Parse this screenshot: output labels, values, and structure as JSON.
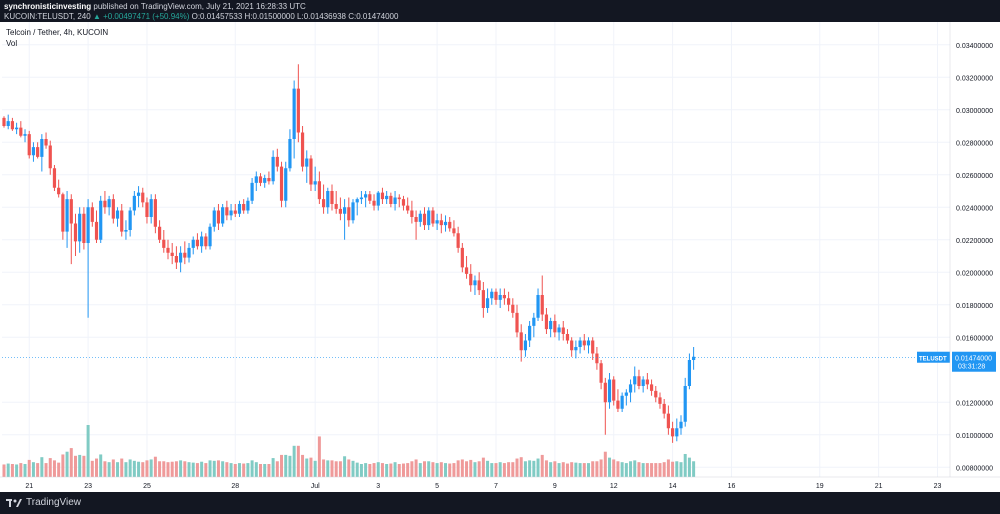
{
  "header": {
    "publisher": "synchronisticinvesting",
    "published_line": " published on TradingView.com, July 21, 2021 16:28:33 UTC",
    "symbol": "KUCOIN:TELUSDT, 240",
    "change": "▲ +0.00497471 (+50.94%)",
    "ohlc": "O:0.01457533 H:0.01500000 L:0.01436938 C:0.01474000"
  },
  "legend": {
    "title": "Telcoin / Tether, 4h, KUCOIN",
    "vol": "Vol"
  },
  "price_label": {
    "symbol": "TELUSDT",
    "price": "0.01474000",
    "countdown": "03:31:28"
  },
  "footer": {
    "logo_text": "TradingView"
  },
  "colors": {
    "up": "#2196f3",
    "down": "#ef5350",
    "vol_up": "#80cbc4",
    "vol_down": "#ef9a9a",
    "price_line": "#2196f3",
    "grid": "#f0f3fa"
  },
  "chart_data": {
    "type": "candlestick",
    "title": "Telcoin / Tether, 4h, KUCOIN",
    "y_axis": {
      "min": 0.0074,
      "max": 0.0354,
      "ticks": [
        "0.03400000",
        "0.03200000",
        "0.03000000",
        "0.02800000",
        "0.02600000",
        "0.02400000",
        "0.02200000",
        "0.02000000",
        "0.01800000",
        "0.01600000",
        "0.01200000",
        "0.01000000",
        "0.00800000"
      ],
      "tick_values": [
        0.034,
        0.032,
        0.03,
        0.028,
        0.026,
        0.024,
        0.022,
        0.02,
        0.018,
        0.016,
        0.012,
        0.01,
        0.008
      ]
    },
    "x_axis": {
      "labels": [
        "21",
        "23",
        "25",
        "28",
        "Jul",
        "3",
        "5",
        "7",
        "9",
        "12",
        "14",
        "16",
        "19",
        "21",
        "23"
      ],
      "label_candles": [
        6,
        20,
        34,
        55,
        74,
        89,
        103,
        117,
        131,
        145,
        159,
        173,
        194,
        208,
        222
      ]
    },
    "current_price": 0.01474,
    "candles": [
      [
        0.0295,
        0.0296,
        0.0289,
        0.029
      ],
      [
        0.029,
        0.0297,
        0.0288,
        0.0293
      ],
      [
        0.0293,
        0.0295,
        0.0287,
        0.0288
      ],
      [
        0.0288,
        0.0292,
        0.0285,
        0.0289
      ],
      [
        0.0289,
        0.0293,
        0.0283,
        0.0284
      ],
      [
        0.0284,
        0.0288,
        0.028,
        0.0285
      ],
      [
        0.0285,
        0.0287,
        0.027,
        0.0272
      ],
      [
        0.0272,
        0.028,
        0.0268,
        0.0277
      ],
      [
        0.0277,
        0.028,
        0.027,
        0.0271
      ],
      [
        0.0271,
        0.0285,
        0.0262,
        0.0282
      ],
      [
        0.0282,
        0.0286,
        0.0276,
        0.0278
      ],
      [
        0.0278,
        0.0281,
        0.026,
        0.0264
      ],
      [
        0.0264,
        0.0266,
        0.025,
        0.0252
      ],
      [
        0.0252,
        0.0257,
        0.0246,
        0.0248
      ],
      [
        0.0248,
        0.0249,
        0.022,
        0.0225
      ],
      [
        0.0225,
        0.025,
        0.0215,
        0.0245
      ],
      [
        0.0245,
        0.0248,
        0.0205,
        0.023
      ],
      [
        0.023,
        0.0236,
        0.021,
        0.0219
      ],
      [
        0.0219,
        0.024,
        0.0212,
        0.0236
      ],
      [
        0.0236,
        0.024,
        0.0214,
        0.0218
      ],
      [
        0.0218,
        0.0245,
        0.0172,
        0.024
      ],
      [
        0.024,
        0.0243,
        0.0228,
        0.0231
      ],
      [
        0.0231,
        0.0238,
        0.0218,
        0.022
      ],
      [
        0.022,
        0.0247,
        0.0218,
        0.0244
      ],
      [
        0.0244,
        0.025,
        0.0236,
        0.024
      ],
      [
        0.024,
        0.0247,
        0.0235,
        0.0245
      ],
      [
        0.0245,
        0.0248,
        0.023,
        0.0233
      ],
      [
        0.0233,
        0.024,
        0.0228,
        0.0238
      ],
      [
        0.0238,
        0.0242,
        0.0222,
        0.0225
      ],
      [
        0.0225,
        0.0232,
        0.022,
        0.0226
      ],
      [
        0.0226,
        0.024,
        0.0222,
        0.0238
      ],
      [
        0.0238,
        0.025,
        0.0235,
        0.0247
      ],
      [
        0.0247,
        0.0253,
        0.024,
        0.0249
      ],
      [
        0.0249,
        0.0252,
        0.024,
        0.0243
      ],
      [
        0.0243,
        0.0246,
        0.023,
        0.0234
      ],
      [
        0.0234,
        0.0248,
        0.023,
        0.0245
      ],
      [
        0.0245,
        0.0248,
        0.0224,
        0.0228
      ],
      [
        0.0228,
        0.0232,
        0.0218,
        0.022
      ],
      [
        0.022,
        0.0226,
        0.0212,
        0.0215
      ],
      [
        0.0215,
        0.022,
        0.0208,
        0.0212
      ],
      [
        0.0212,
        0.0218,
        0.0205,
        0.021
      ],
      [
        0.021,
        0.0216,
        0.0202,
        0.0206
      ],
      [
        0.0206,
        0.0216,
        0.02,
        0.0212
      ],
      [
        0.0212,
        0.0219,
        0.0205,
        0.0209
      ],
      [
        0.0209,
        0.0218,
        0.0206,
        0.0215
      ],
      [
        0.0215,
        0.0222,
        0.0211,
        0.022
      ],
      [
        0.022,
        0.0224,
        0.0214,
        0.0216
      ],
      [
        0.0216,
        0.0225,
        0.0212,
        0.0222
      ],
      [
        0.0222,
        0.0224,
        0.0214,
        0.0216
      ],
      [
        0.0216,
        0.023,
        0.0214,
        0.0228
      ],
      [
        0.0228,
        0.024,
        0.0225,
        0.0238
      ],
      [
        0.0238,
        0.0242,
        0.0226,
        0.023
      ],
      [
        0.023,
        0.0242,
        0.0228,
        0.024
      ],
      [
        0.024,
        0.0244,
        0.0232,
        0.0235
      ],
      [
        0.0235,
        0.0242,
        0.0232,
        0.0238
      ],
      [
        0.0238,
        0.0242,
        0.0234,
        0.0236
      ],
      [
        0.0236,
        0.0244,
        0.0234,
        0.0242
      ],
      [
        0.0242,
        0.0245,
        0.0236,
        0.0238
      ],
      [
        0.0238,
        0.0246,
        0.0236,
        0.0244
      ],
      [
        0.0244,
        0.0258,
        0.0242,
        0.0255
      ],
      [
        0.0255,
        0.0262,
        0.025,
        0.0259
      ],
      [
        0.0259,
        0.0261,
        0.0253,
        0.0255
      ],
      [
        0.0255,
        0.026,
        0.0252,
        0.0258
      ],
      [
        0.0258,
        0.0262,
        0.0254,
        0.0256
      ],
      [
        0.0256,
        0.0275,
        0.0254,
        0.0271
      ],
      [
        0.0271,
        0.0276,
        0.0262,
        0.0265
      ],
      [
        0.0265,
        0.0268,
        0.024,
        0.0244
      ],
      [
        0.0244,
        0.0268,
        0.024,
        0.0264
      ],
      [
        0.0264,
        0.0288,
        0.0262,
        0.0282
      ],
      [
        0.0282,
        0.0318,
        0.027,
        0.0313
      ],
      [
        0.0313,
        0.0328,
        0.028,
        0.0286
      ],
      [
        0.0286,
        0.029,
        0.0262,
        0.0265
      ],
      [
        0.0265,
        0.0275,
        0.0255,
        0.027
      ],
      [
        0.027,
        0.0272,
        0.025,
        0.0254
      ],
      [
        0.0254,
        0.0265,
        0.025,
        0.0256
      ],
      [
        0.0256,
        0.0262,
        0.0242,
        0.0245
      ],
      [
        0.0245,
        0.0254,
        0.0236,
        0.024
      ],
      [
        0.024,
        0.0252,
        0.0236,
        0.025
      ],
      [
        0.025,
        0.0254,
        0.0238,
        0.0242
      ],
      [
        0.0242,
        0.025,
        0.0236,
        0.0239
      ],
      [
        0.0239,
        0.0246,
        0.0232,
        0.0236
      ],
      [
        0.0236,
        0.0245,
        0.022,
        0.024
      ],
      [
        0.024,
        0.0246,
        0.0228,
        0.0232
      ],
      [
        0.0232,
        0.0245,
        0.023,
        0.0243
      ],
      [
        0.0243,
        0.0246,
        0.0235,
        0.0245
      ],
      [
        0.0245,
        0.025,
        0.0242,
        0.0246
      ],
      [
        0.0246,
        0.025,
        0.024,
        0.0248
      ],
      [
        0.0248,
        0.025,
        0.0242,
        0.0244
      ],
      [
        0.0244,
        0.0248,
        0.0238,
        0.0241
      ],
      [
        0.0241,
        0.025,
        0.0238,
        0.0249
      ],
      [
        0.0249,
        0.0252,
        0.0242,
        0.0245
      ],
      [
        0.0245,
        0.025,
        0.0242,
        0.0247
      ],
      [
        0.0247,
        0.0249,
        0.024,
        0.0242
      ],
      [
        0.0242,
        0.025,
        0.0238,
        0.0246
      ],
      [
        0.0246,
        0.0248,
        0.024,
        0.0245
      ],
      [
        0.0245,
        0.0247,
        0.0238,
        0.0241
      ],
      [
        0.0241,
        0.0246,
        0.0236,
        0.0238
      ],
      [
        0.0238,
        0.0244,
        0.023,
        0.0234
      ],
      [
        0.0234,
        0.0238,
        0.022,
        0.0231
      ],
      [
        0.0231,
        0.0238,
        0.0228,
        0.0236
      ],
      [
        0.0236,
        0.024,
        0.0226,
        0.0229
      ],
      [
        0.0229,
        0.024,
        0.0226,
        0.0238
      ],
      [
        0.0238,
        0.024,
        0.0228,
        0.023
      ],
      [
        0.023,
        0.0236,
        0.0226,
        0.0232
      ],
      [
        0.0232,
        0.0236,
        0.0224,
        0.0229
      ],
      [
        0.0229,
        0.0235,
        0.0225,
        0.0231
      ],
      [
        0.0231,
        0.0234,
        0.0225,
        0.0227
      ],
      [
        0.0227,
        0.0232,
        0.0222,
        0.0224
      ],
      [
        0.0224,
        0.0228,
        0.0212,
        0.0215
      ],
      [
        0.0215,
        0.0218,
        0.02,
        0.0203
      ],
      [
        0.0203,
        0.021,
        0.0196,
        0.0199
      ],
      [
        0.0199,
        0.0205,
        0.0188,
        0.0192
      ],
      [
        0.0192,
        0.0198,
        0.0186,
        0.0195
      ],
      [
        0.0195,
        0.02,
        0.0186,
        0.0189
      ],
      [
        0.0189,
        0.0194,
        0.0172,
        0.0178
      ],
      [
        0.0178,
        0.019,
        0.0175,
        0.0184
      ],
      [
        0.0184,
        0.019,
        0.018,
        0.0188
      ],
      [
        0.0188,
        0.019,
        0.018,
        0.0183
      ],
      [
        0.0183,
        0.019,
        0.0178,
        0.0186
      ],
      [
        0.0186,
        0.019,
        0.018,
        0.0184
      ],
      [
        0.0184,
        0.0188,
        0.0176,
        0.018
      ],
      [
        0.018,
        0.0184,
        0.0172,
        0.0175
      ],
      [
        0.0175,
        0.018,
        0.016,
        0.0163
      ],
      [
        0.0163,
        0.0168,
        0.0145,
        0.0152
      ],
      [
        0.0152,
        0.0162,
        0.0148,
        0.0158
      ],
      [
        0.0158,
        0.017,
        0.0154,
        0.0167
      ],
      [
        0.0167,
        0.0175,
        0.016,
        0.0172
      ],
      [
        0.0172,
        0.019,
        0.017,
        0.0186
      ],
      [
        0.0186,
        0.0198,
        0.017,
        0.0174
      ],
      [
        0.0174,
        0.0178,
        0.0162,
        0.0165
      ],
      [
        0.0165,
        0.0172,
        0.016,
        0.017
      ],
      [
        0.017,
        0.0174,
        0.016,
        0.0163
      ],
      [
        0.0163,
        0.0168,
        0.0158,
        0.0166
      ],
      [
        0.0166,
        0.017,
        0.0158,
        0.0162
      ],
      [
        0.0162,
        0.0165,
        0.0156,
        0.0158
      ],
      [
        0.0158,
        0.016,
        0.0148,
        0.0152
      ],
      [
        0.0152,
        0.0158,
        0.0147,
        0.0154
      ],
      [
        0.0154,
        0.016,
        0.015,
        0.0158
      ],
      [
        0.0158,
        0.0162,
        0.0152,
        0.0155
      ],
      [
        0.0155,
        0.016,
        0.015,
        0.0158
      ],
      [
        0.0158,
        0.016,
        0.0146,
        0.015
      ],
      [
        0.015,
        0.0154,
        0.014,
        0.0144
      ],
      [
        0.0144,
        0.0146,
        0.0128,
        0.0132
      ],
      [
        0.0132,
        0.0135,
        0.01,
        0.012
      ],
      [
        0.012,
        0.0138,
        0.0116,
        0.0134
      ],
      [
        0.0134,
        0.0136,
        0.0118,
        0.0121
      ],
      [
        0.0121,
        0.0128,
        0.0114,
        0.0116
      ],
      [
        0.0116,
        0.0126,
        0.0114,
        0.0124
      ],
      [
        0.0124,
        0.0128,
        0.0118,
        0.0126
      ],
      [
        0.0126,
        0.0134,
        0.012,
        0.0131
      ],
      [
        0.0131,
        0.0142,
        0.0126,
        0.0136
      ],
      [
        0.0136,
        0.014,
        0.0128,
        0.013
      ],
      [
        0.013,
        0.0136,
        0.0126,
        0.0134
      ],
      [
        0.0134,
        0.0138,
        0.0128,
        0.0131
      ],
      [
        0.0131,
        0.0134,
        0.0124,
        0.0127
      ],
      [
        0.0127,
        0.013,
        0.012,
        0.0123
      ],
      [
        0.0123,
        0.0126,
        0.0116,
        0.0119
      ],
      [
        0.0119,
        0.0122,
        0.011,
        0.0113
      ],
      [
        0.0113,
        0.0118,
        0.01,
        0.0104
      ],
      [
        0.0104,
        0.0108,
        0.0095,
        0.0099
      ],
      [
        0.0099,
        0.011,
        0.0096,
        0.0104
      ],
      [
        0.0104,
        0.0112,
        0.01,
        0.0108
      ],
      [
        0.0108,
        0.0135,
        0.0105,
        0.013
      ],
      [
        0.013,
        0.015,
        0.0128,
        0.0146
      ],
      [
        0.0146,
        0.0154,
        0.014,
        0.0148
      ]
    ],
    "volume": [],
    "vol_max": 1
  }
}
